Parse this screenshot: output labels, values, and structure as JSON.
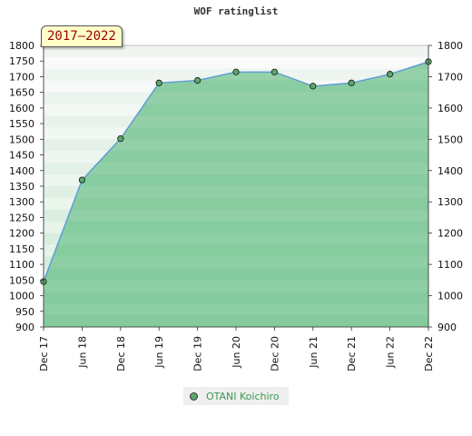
{
  "chart_data": {
    "type": "area",
    "title": "WOF ratinglist",
    "period_label": "2017–2022",
    "categories": [
      "Dec 17",
      "Jun 18",
      "Dec 18",
      "Jun 19",
      "Dec 19",
      "Jun 20",
      "Dec 20",
      "Jun 21",
      "Dec 21",
      "Jun 22",
      "Dec 22"
    ],
    "series": [
      {
        "name": "OTANI Koichiro",
        "values": [
          1045,
          1370,
          1502,
          1680,
          1688,
          1715,
          1715,
          1670,
          1680,
          1708,
          1748
        ]
      }
    ],
    "left_axis": {
      "ylim": [
        900,
        1800
      ],
      "ticks": [
        900,
        950,
        1000,
        1050,
        1100,
        1150,
        1200,
        1250,
        1300,
        1350,
        1400,
        1450,
        1500,
        1550,
        1600,
        1650,
        1700,
        1750,
        1800
      ]
    },
    "right_axis": {
      "ylim": [
        900,
        1800
      ],
      "ticks": [
        900,
        1000,
        1100,
        1200,
        1300,
        1400,
        1500,
        1600,
        1700,
        1800
      ]
    },
    "legend_position": "bottom-center",
    "colors": {
      "line": "#5b9bd5",
      "fill": "#6cc08a",
      "marker": "#5aa86a",
      "legend_text": "#3a9a50"
    }
  }
}
